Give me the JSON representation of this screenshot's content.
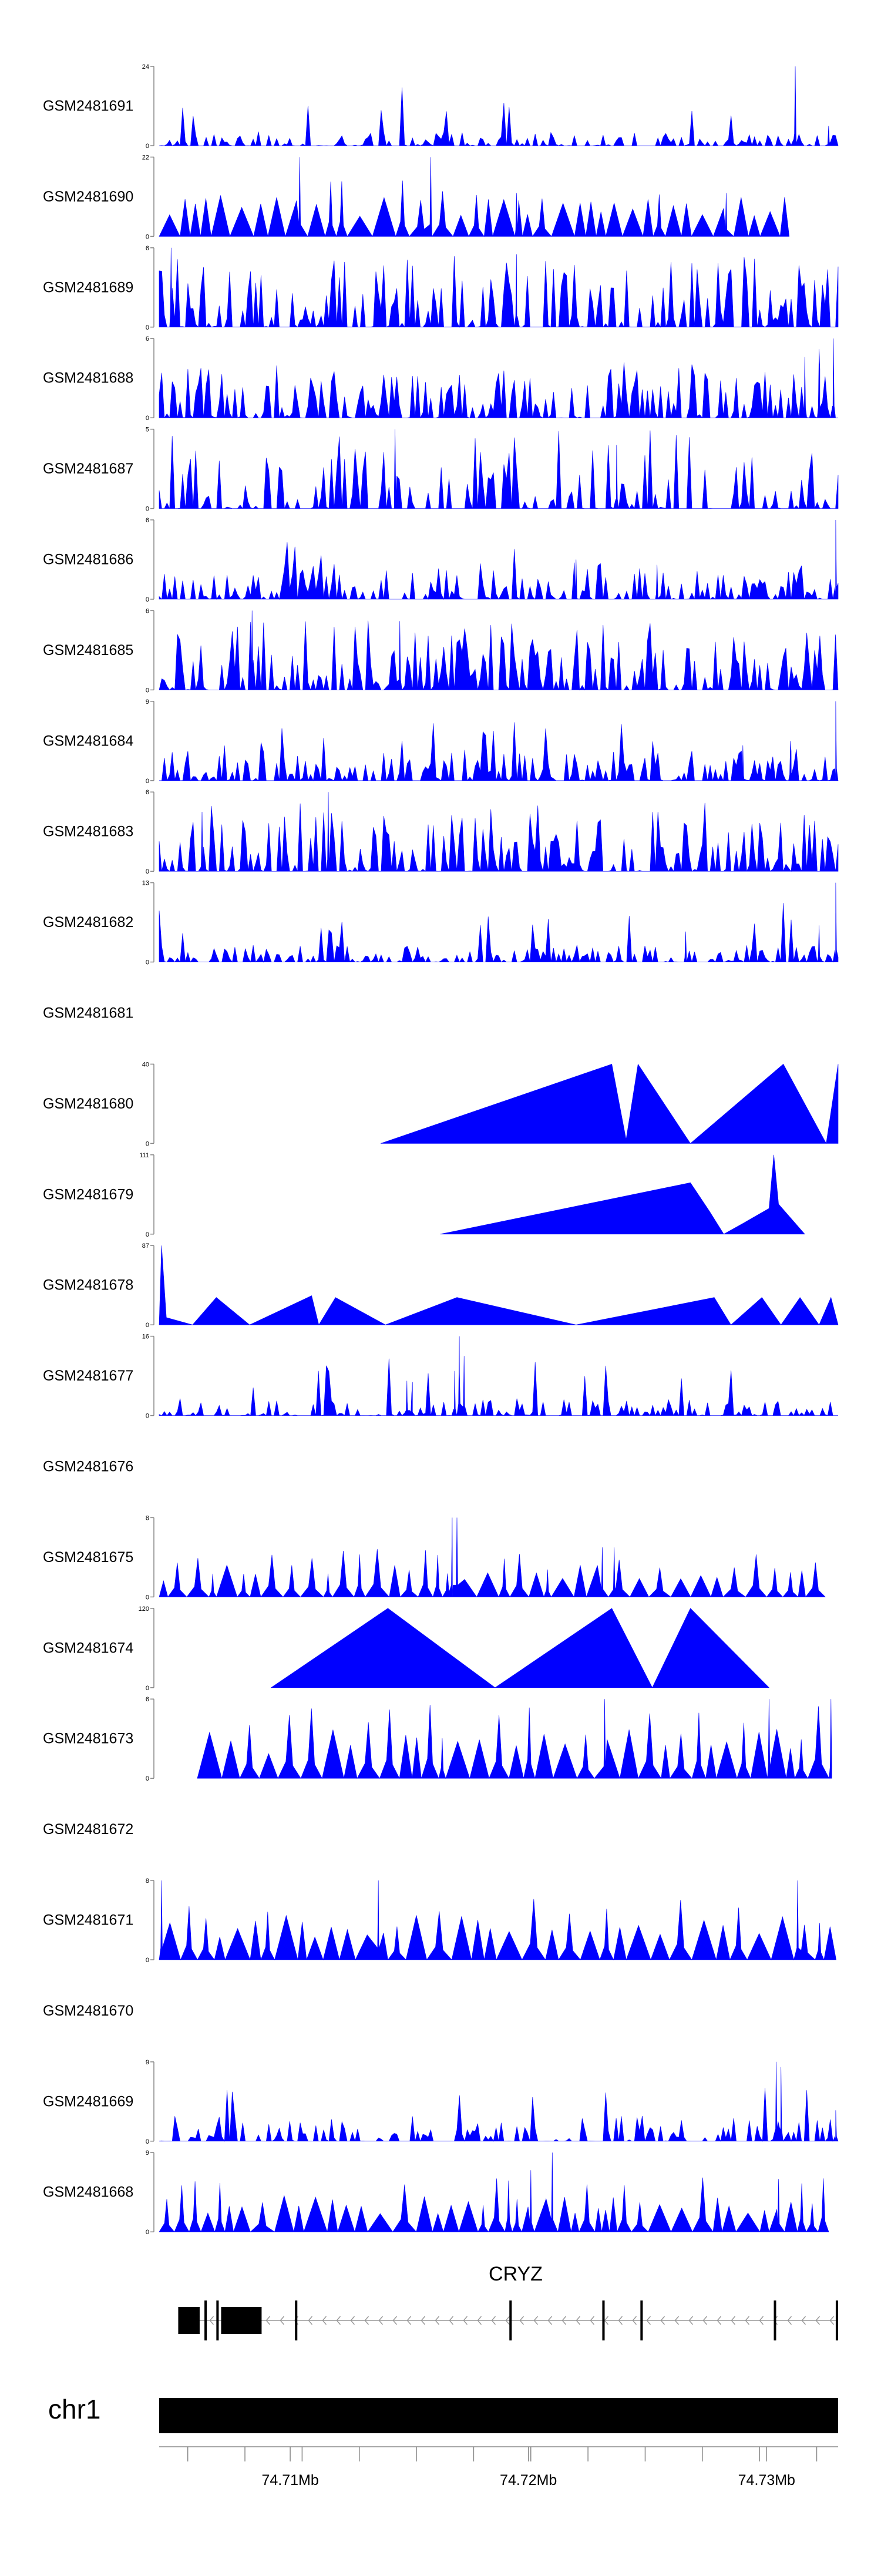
{
  "chart_data": {
    "type": "area",
    "title": "",
    "chromosome": "chr1",
    "gene": "CRYZ",
    "xlim": [
      74.7045,
      74.733
    ],
    "x_axis_ticks": [
      {
        "pos": 74.71,
        "label": "74.71Mb"
      },
      {
        "pos": 74.72,
        "label": "74.72Mb"
      },
      {
        "pos": 74.73,
        "label": "74.73Mb"
      }
    ],
    "x_minor_ticks": [
      74.7057,
      74.7081,
      74.7105,
      74.7129,
      74.7153,
      74.7177,
      74.7201,
      74.7225,
      74.7249,
      74.7273,
      74.7297,
      74.7321
    ],
    "fill_color": "#0000ff",
    "tracks": [
      {
        "name": "GSM2481691",
        "ymax": 24,
        "has_data": true,
        "style": "dense",
        "seed": 11,
        "density": 0.55,
        "base": 0.1,
        "peaks": [
          [
            74.7312,
            24
          ],
          [
            74.7326,
            6
          ]
        ]
      },
      {
        "name": "GSM2481690",
        "ymax": 22,
        "has_data": true,
        "style": "tri",
        "seed": 12,
        "density": 0.2,
        "base": 0.45,
        "end": 74.7311,
        "peaks": [
          [
            74.7104,
            22
          ],
          [
            74.7159,
            22
          ],
          [
            74.7195,
            12
          ],
          [
            74.7283,
            12
          ]
        ]
      },
      {
        "name": "GSM2481689",
        "ymax": 6,
        "has_data": true,
        "style": "dense",
        "seed": 13,
        "density": 0.65,
        "base": 0.5,
        "peaks": [
          [
            74.705,
            6
          ],
          [
            74.7195,
            5.5
          ]
        ]
      },
      {
        "name": "GSM2481688",
        "ymax": 6,
        "has_data": true,
        "style": "dense",
        "seed": 14,
        "density": 0.7,
        "base": 0.35,
        "peaks": [
          [
            74.7328,
            6
          ],
          [
            74.7322,
            5.2
          ],
          [
            74.7316,
            4.6
          ]
        ]
      },
      {
        "name": "GSM2481687",
        "ymax": 5,
        "has_data": true,
        "style": "dense",
        "seed": 15,
        "density": 0.45,
        "base": 0.55,
        "peaks": [
          [
            74.7144,
            5
          ],
          [
            74.7237,
            4
          ]
        ]
      },
      {
        "name": "GSM2481686",
        "ymax": 6,
        "has_data": true,
        "style": "dense",
        "seed": 16,
        "density": 0.6,
        "base": 0.25,
        "peaks": [
          [
            74.7329,
            6
          ],
          [
            74.722,
            3
          ],
          [
            74.7254,
            2.6
          ]
        ]
      },
      {
        "name": "GSM2481685",
        "ymax": 6,
        "has_data": true,
        "style": "dense",
        "seed": 17,
        "density": 0.7,
        "base": 0.5,
        "peaks": [
          [
            74.7084,
            6
          ],
          [
            74.7146,
            5.2
          ]
        ]
      },
      {
        "name": "GSM2481684",
        "ymax": 9,
        "has_data": true,
        "style": "dense",
        "seed": 18,
        "density": 0.75,
        "base": 0.22,
        "peaks": [
          [
            74.7329,
            9
          ],
          [
            74.729,
            4
          ],
          [
            74.731,
            4.5
          ]
        ]
      },
      {
        "name": "GSM2481683",
        "ymax": 6,
        "has_data": true,
        "style": "dense",
        "seed": 19,
        "density": 0.7,
        "base": 0.48,
        "peaks": [
          [
            74.7116,
            6
          ],
          [
            74.7063,
            4.5
          ]
        ]
      },
      {
        "name": "GSM2481682",
        "ymax": 13,
        "has_data": true,
        "style": "dense",
        "seed": 20,
        "density": 0.65,
        "base": 0.12,
        "peaks": [
          [
            74.7329,
            13
          ],
          [
            74.7266,
            5
          ],
          [
            74.7322,
            6
          ]
        ]
      },
      {
        "name": "GSM2481681",
        "ymax": null,
        "has_data": false
      },
      {
        "name": "GSM2481680",
        "ymax": 40,
        "has_data": true,
        "style": "explicit",
        "points": [
          [
            74.7138,
            0
          ],
          [
            74.7235,
            40
          ],
          [
            74.7241,
            2
          ],
          [
            74.7246,
            40
          ],
          [
            74.7268,
            0
          ],
          [
            74.7307,
            40
          ],
          [
            74.7325,
            0
          ],
          [
            74.733,
            40
          ]
        ]
      },
      {
        "name": "GSM2481679",
        "ymax": 111,
        "has_data": true,
        "style": "explicit",
        "points": [
          [
            74.7163,
            0
          ],
          [
            74.7268,
            72
          ],
          [
            74.7276,
            32
          ],
          [
            74.7282,
            0
          ],
          [
            74.729,
            15
          ],
          [
            74.7301,
            36
          ],
          [
            74.7303,
            111
          ],
          [
            74.7305,
            42
          ],
          [
            74.7316,
            0
          ]
        ]
      },
      {
        "name": "GSM2481678",
        "ymax": 87,
        "has_data": true,
        "style": "explicit",
        "points": [
          [
            74.7045,
            0
          ],
          [
            74.7046,
            87
          ],
          [
            74.7048,
            8
          ],
          [
            74.7059,
            0
          ],
          [
            74.7069,
            30
          ],
          [
            74.7083,
            0
          ],
          [
            74.7109,
            32
          ],
          [
            74.7112,
            0
          ],
          [
            74.7119,
            30
          ],
          [
            74.714,
            0
          ],
          [
            74.717,
            30
          ],
          [
            74.722,
            0
          ],
          [
            74.7278,
            30
          ],
          [
            74.7285,
            0
          ],
          [
            74.7298,
            30
          ],
          [
            74.7306,
            0
          ],
          [
            74.7314,
            30
          ],
          [
            74.7322,
            0
          ],
          [
            74.7327,
            30
          ],
          [
            74.733,
            0
          ]
        ]
      },
      {
        "name": "GSM2481677",
        "ymax": 16,
        "has_data": true,
        "style": "dense",
        "seed": 21,
        "density": 0.6,
        "base": 0.12,
        "peaks": [
          [
            74.7171,
            16
          ],
          [
            74.7169,
            9
          ],
          [
            74.7173,
            12
          ],
          [
            74.7149,
            7
          ],
          [
            74.7151,
            4.5
          ]
        ]
      },
      {
        "name": "GSM2481676",
        "ymax": null,
        "has_data": false
      },
      {
        "name": "GSM2481675",
        "ymax": 8,
        "has_data": true,
        "style": "tri",
        "seed": 22,
        "density": 0.45,
        "base": 0.35,
        "peaks": [
          [
            74.7168,
            8
          ],
          [
            74.717,
            8
          ],
          [
            74.7236,
            5
          ],
          [
            74.7231,
            5
          ]
        ]
      },
      {
        "name": "GSM2481674",
        "ymax": 120,
        "has_data": true,
        "style": "explicit",
        "points": [
          [
            74.7092,
            0
          ],
          [
            74.7141,
            120
          ],
          [
            74.7186,
            0
          ],
          [
            74.7235,
            120
          ],
          [
            74.7252,
            0
          ],
          [
            74.7268,
            120
          ],
          [
            74.7301,
            0
          ]
        ]
      },
      {
        "name": "GSM2481673",
        "ymax": 6,
        "has_data": true,
        "style": "tri",
        "seed": 23,
        "density": 0.35,
        "base": 0.55,
        "start": 74.7061,
        "peaks": [
          [
            74.7232,
            6
          ],
          [
            74.7301,
            6
          ],
          [
            74.7327,
            6
          ]
        ]
      },
      {
        "name": "GSM2481672",
        "ymax": null,
        "has_data": false
      },
      {
        "name": "GSM2481671",
        "ymax": 8,
        "has_data": true,
        "style": "tri",
        "seed": 24,
        "density": 0.22,
        "base": 0.5,
        "peaks": [
          [
            74.7046,
            8
          ],
          [
            74.7137,
            8
          ],
          [
            74.7313,
            8
          ]
        ]
      },
      {
        "name": "GSM2481670",
        "ymax": null,
        "has_data": false
      },
      {
        "name": "GSM2481669",
        "ymax": 9,
        "has_data": true,
        "style": "dense",
        "seed": 25,
        "density": 0.55,
        "base": 0.18,
        "peaks": [
          [
            74.7304,
            9
          ],
          [
            74.7306,
            8.4
          ],
          [
            74.7329,
            3.5
          ]
        ]
      },
      {
        "name": "GSM2481668",
        "ymax": 9,
        "has_data": true,
        "style": "tri",
        "seed": 26,
        "density": 0.4,
        "base": 0.4,
        "peaks": [
          [
            74.721,
            9
          ],
          [
            74.7201,
            7
          ],
          [
            74.7305,
            6
          ]
        ]
      }
    ],
    "gene_model": {
      "strand": "-",
      "start": 74.7053,
      "end": 74.733,
      "exons": [
        [
          74.7053,
          74.7062
        ],
        [
          74.7064,
          74.7065
        ],
        [
          74.7069,
          74.707
        ],
        [
          74.7071,
          74.7088
        ],
        [
          74.7102,
          74.7103
        ],
        [
          74.7192,
          74.7193
        ],
        [
          74.7231,
          74.7232
        ],
        [
          74.7247,
          74.7248
        ],
        [
          74.7303,
          74.73035
        ],
        [
          74.7329,
          74.73295
        ]
      ]
    }
  }
}
